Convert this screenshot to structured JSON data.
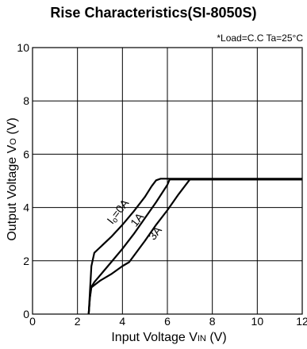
{
  "chart_data": {
    "type": "line",
    "title": "Rise Characteristics(SI-8050S)",
    "annotation": "*Load=C.C Ta=25°C",
    "xlabel": {
      "main": "Input Voltage V",
      "sub": "IN",
      "unit": " (V)"
    },
    "ylabel": {
      "main": "Output Voltage V",
      "sub": "O",
      "unit": " (V)"
    },
    "xlim": [
      0,
      12
    ],
    "ylim": [
      0,
      10
    ],
    "x_ticks": [
      0,
      2,
      4,
      6,
      8,
      10,
      12
    ],
    "y_ticks": [
      0,
      2,
      4,
      6,
      8,
      10
    ],
    "grid": true,
    "series": [
      {
        "name": "Io=0A",
        "label_main": "Io",
        "label_rest": "=0A",
        "x": [
          2.5,
          2.55,
          2.62,
          2.75,
          3.0,
          3.5,
          4.0,
          4.5,
          5.0,
          5.3,
          5.5,
          5.7,
          12.0
        ],
        "y": [
          0.0,
          0.8,
          1.8,
          2.3,
          2.5,
          2.9,
          3.35,
          3.85,
          4.4,
          4.8,
          5.02,
          5.08,
          5.08
        ]
      },
      {
        "name": "1A",
        "label_main": "1A",
        "label_rest": "",
        "x": [
          2.5,
          2.55,
          2.6,
          2.75,
          3.0,
          3.5,
          4.0,
          4.5,
          5.0,
          5.5,
          6.0,
          6.1,
          12.0
        ],
        "y": [
          0.0,
          0.6,
          1.0,
          1.2,
          1.45,
          1.95,
          2.45,
          3.0,
          3.6,
          4.2,
          4.85,
          5.05,
          5.05
        ]
      },
      {
        "name": "3A",
        "label_main": "3A",
        "label_rest": "",
        "x": [
          2.5,
          2.55,
          2.62,
          2.8,
          3.0,
          3.5,
          4.0,
          4.3,
          5.0,
          5.5,
          6.0,
          6.5,
          7.0,
          12.0
        ],
        "y": [
          0.0,
          0.6,
          1.0,
          1.12,
          1.25,
          1.5,
          1.8,
          1.95,
          2.75,
          3.35,
          3.9,
          4.5,
          5.05,
          5.05
        ]
      }
    ]
  }
}
